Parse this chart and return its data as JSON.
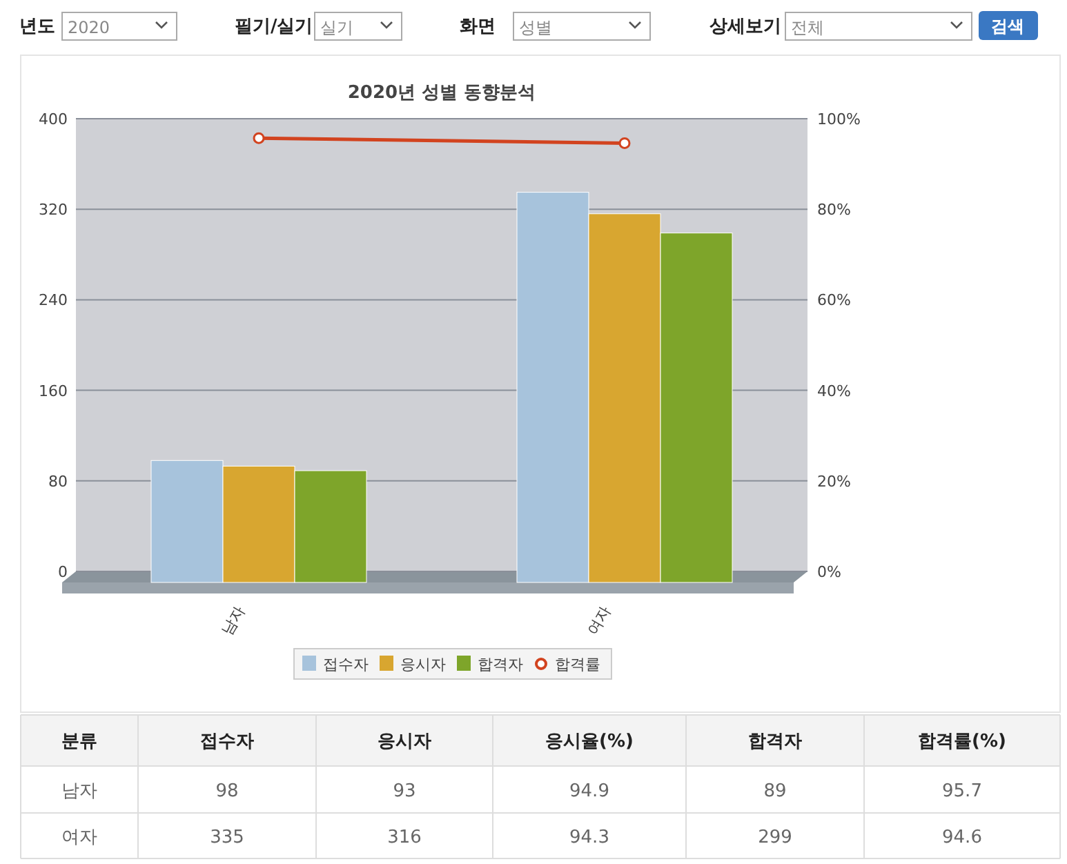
{
  "chart_data": {
    "type": "bar",
    "title": "2020년 성별 동향분석",
    "categories": [
      "남자",
      "여자"
    ],
    "series": [
      {
        "name": "접수자",
        "color": "#a7c3dc",
        "values": [
          98,
          335
        ]
      },
      {
        "name": "응시자",
        "color": "#d8a630",
        "values": [
          93,
          316
        ]
      },
      {
        "name": "합격자",
        "color": "#7ea52a",
        "values": [
          89,
          299
        ]
      },
      {
        "name": "합격률",
        "type": "line",
        "axis": "y2",
        "color": "#d2431f",
        "values": [
          95.7,
          94.6
        ]
      }
    ],
    "ylim": [
      0,
      400
    ],
    "yticks": [
      0,
      80,
      160,
      240,
      320,
      400
    ],
    "y2lim": [
      0,
      100
    ],
    "y2ticks": [
      {
        "value": 0,
        "label": "0%"
      },
      {
        "value": 20,
        "label": "20%"
      },
      {
        "value": 40,
        "label": "40%"
      },
      {
        "value": 60,
        "label": "60%"
      },
      {
        "value": 80,
        "label": "80%"
      },
      {
        "value": 100,
        "label": "100%"
      }
    ],
    "grid": "y",
    "legend": "bottom",
    "marker": "circle",
    "annotations": [
      "년도",
      "2020",
      "필기/실기",
      "실기",
      "화면",
      "성별",
      "상세보기",
      "전체",
      "검색",
      "분류",
      "접수자",
      "응시자",
      "응시율(%)",
      "합격자",
      "합격률(%)",
      "98",
      "93",
      "94.9",
      "89",
      "95.7",
      "335",
      "316",
      "94.3",
      "299",
      "94.6"
    ]
  }
}
